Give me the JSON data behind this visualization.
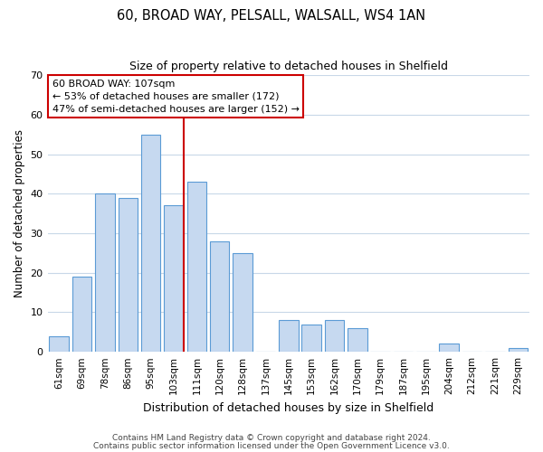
{
  "title1": "60, BROAD WAY, PELSALL, WALSALL, WS4 1AN",
  "title2": "Size of property relative to detached houses in Shelfield",
  "xlabel": "Distribution of detached houses by size in Shelfield",
  "ylabel": "Number of detached properties",
  "bin_labels": [
    "61sqm",
    "69sqm",
    "78sqm",
    "86sqm",
    "95sqm",
    "103sqm",
    "111sqm",
    "120sqm",
    "128sqm",
    "137sqm",
    "145sqm",
    "153sqm",
    "162sqm",
    "170sqm",
    "179sqm",
    "187sqm",
    "195sqm",
    "204sqm",
    "212sqm",
    "221sqm",
    "229sqm"
  ],
  "bar_heights": [
    4,
    19,
    40,
    39,
    55,
    37,
    43,
    28,
    25,
    0,
    8,
    7,
    8,
    6,
    0,
    0,
    0,
    2,
    0,
    0,
    1
  ],
  "bar_color": "#c6d9f0",
  "bar_edge_color": "#5b9bd5",
  "vline_index": 5,
  "vline_color": "#cc0000",
  "annotation_line1": "60 BROAD WAY: 107sqm",
  "annotation_line2": "← 53% of detached houses are smaller (172)",
  "annotation_line3": "47% of semi-detached houses are larger (152) →",
  "annotation_box_color": "#ffffff",
  "annotation_box_edge_color": "#cc0000",
  "ylim": [
    0,
    70
  ],
  "yticks": [
    0,
    10,
    20,
    30,
    40,
    50,
    60,
    70
  ],
  "footer1": "Contains HM Land Registry data © Crown copyright and database right 2024.",
  "footer2": "Contains public sector information licensed under the Open Government Licence v3.0."
}
